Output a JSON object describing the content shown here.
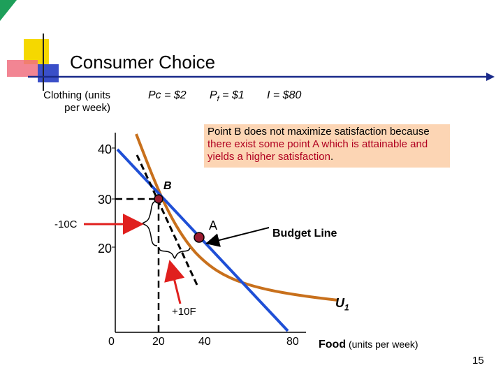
{
  "slide": {
    "title": "Consumer Choice",
    "page_number": "15"
  },
  "params": {
    "pc": "Pc = $2",
    "pf_main": "P",
    "pf_sub": "f",
    "pf_rest": " = $1",
    "income": "I = $80"
  },
  "axes": {
    "y_label": "Clothing (units per week)",
    "x_label_bold": "Food",
    "x_label_rest": " (units per week)",
    "y_ticks": [
      "40",
      "30",
      "20"
    ],
    "x_ticks": [
      "0",
      "20",
      "40",
      "80"
    ]
  },
  "note": {
    "line1": "Point B does not maximize satisfaction because ",
    "red": "there exist some point A which is attainable and yields a higher satisfaction",
    "end": "."
  },
  "labels": {
    "point_b": "B",
    "point_a": "A",
    "budget_line": "Budget Line",
    "u_main": "U",
    "u_sub": "1",
    "minus_c": "-10C",
    "plus_f": "+10F"
  },
  "colors": {
    "budget_line": "#1f4fd6",
    "indifference_curve": "#c8701c",
    "point_fill": "#9b1b30",
    "arrow_red": "#e0201e",
    "note_bg": "#fcd5b4"
  }
}
